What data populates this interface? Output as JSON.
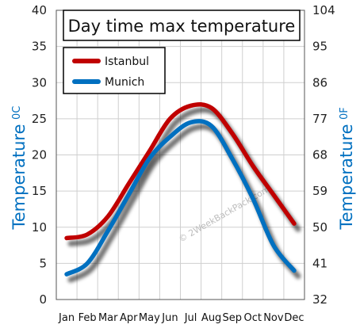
{
  "chart_data": {
    "type": "line",
    "title": "Day time max temperature",
    "categories": [
      "Jan",
      "Feb",
      "Mar",
      "Apr",
      "May",
      "Jun",
      "Jul",
      "Aug",
      "Sep",
      "Oct",
      "Nov",
      "Dec"
    ],
    "series": [
      {
        "name": "Istanbul",
        "color": "#c00000",
        "values": [
          8.5,
          9.0,
          11.5,
          16.0,
          20.5,
          25.0,
          26.8,
          26.5,
          23.0,
          18.5,
          14.5,
          10.5
        ]
      },
      {
        "name": "Munich",
        "color": "#0070c0",
        "values": [
          3.5,
          5.0,
          9.5,
          14.5,
          19.5,
          22.5,
          24.5,
          24.0,
          19.5,
          14.0,
          7.5,
          4.0
        ]
      }
    ],
    "ylabel_left": "Temperature",
    "ylabel_left_unit": "0C",
    "ylabel_right": "Temperature",
    "ylabel_right_unit": "0F",
    "ylim": [
      0,
      40
    ],
    "yticks_left": [
      "0",
      "5",
      "10",
      "15",
      "20",
      "25",
      "30",
      "35",
      "40"
    ],
    "yticks_right": [
      "32",
      "41",
      "50",
      "59",
      "68",
      "77",
      "86",
      "95",
      "104"
    ],
    "grid": true,
    "legend_position": "top-left",
    "watermark": "© 2WeekBackPack.com"
  }
}
